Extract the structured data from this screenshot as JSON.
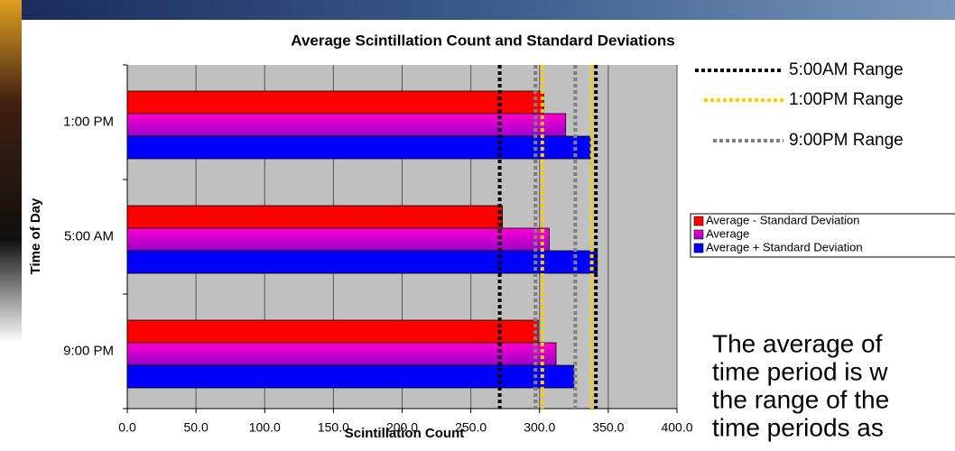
{
  "chart_data": {
    "type": "bar",
    "orientation": "horizontal",
    "title": "Average Scintillation Count and Standard Deviations",
    "x_label": "Scintillation Count",
    "y_label": "Time of Day",
    "categories": [
      "1:00 PM",
      "5:00 AM",
      "9:00 PM"
    ],
    "series": [
      {
        "name": "Average - Standard Deviation",
        "color": "#ff0000",
        "values": [
          303,
          273,
          299
        ]
      },
      {
        "name": "Average",
        "color": "#9900cc",
        "values": [
          319,
          307,
          312
        ]
      },
      {
        "name": "Average + Standard Deviation",
        "color": "#0000ff",
        "values": [
          337,
          342,
          325
        ]
      }
    ],
    "ranges": [
      {
        "name": "5:00AM Range",
        "color": "#000000",
        "values": [
          271,
          341
        ]
      },
      {
        "name": "1:00PM Range",
        "color": "#ffcc00",
        "values": [
          302,
          338
        ]
      },
      {
        "name": "9:00PM Range",
        "color": "#808080",
        "values": [
          297,
          326
        ]
      }
    ],
    "xlim": [
      0,
      400
    ],
    "xticks": [
      {
        "value": 0,
        "label": "0.0"
      },
      {
        "value": 50,
        "label": "50.0"
      },
      {
        "value": 100,
        "label": "100.0"
      },
      {
        "value": 150,
        "label": "150.0"
      },
      {
        "value": 200,
        "label": "200.0"
      },
      {
        "value": 250,
        "label": "250.0"
      },
      {
        "value": 300,
        "label": "300.0"
      },
      {
        "value": 350,
        "label": "350.0"
      },
      {
        "value": 400,
        "label": "400.0"
      }
    ],
    "grid": true,
    "note_lines": [
      "The average of",
      "time period is w",
      "the range of the",
      "time periods as"
    ]
  }
}
